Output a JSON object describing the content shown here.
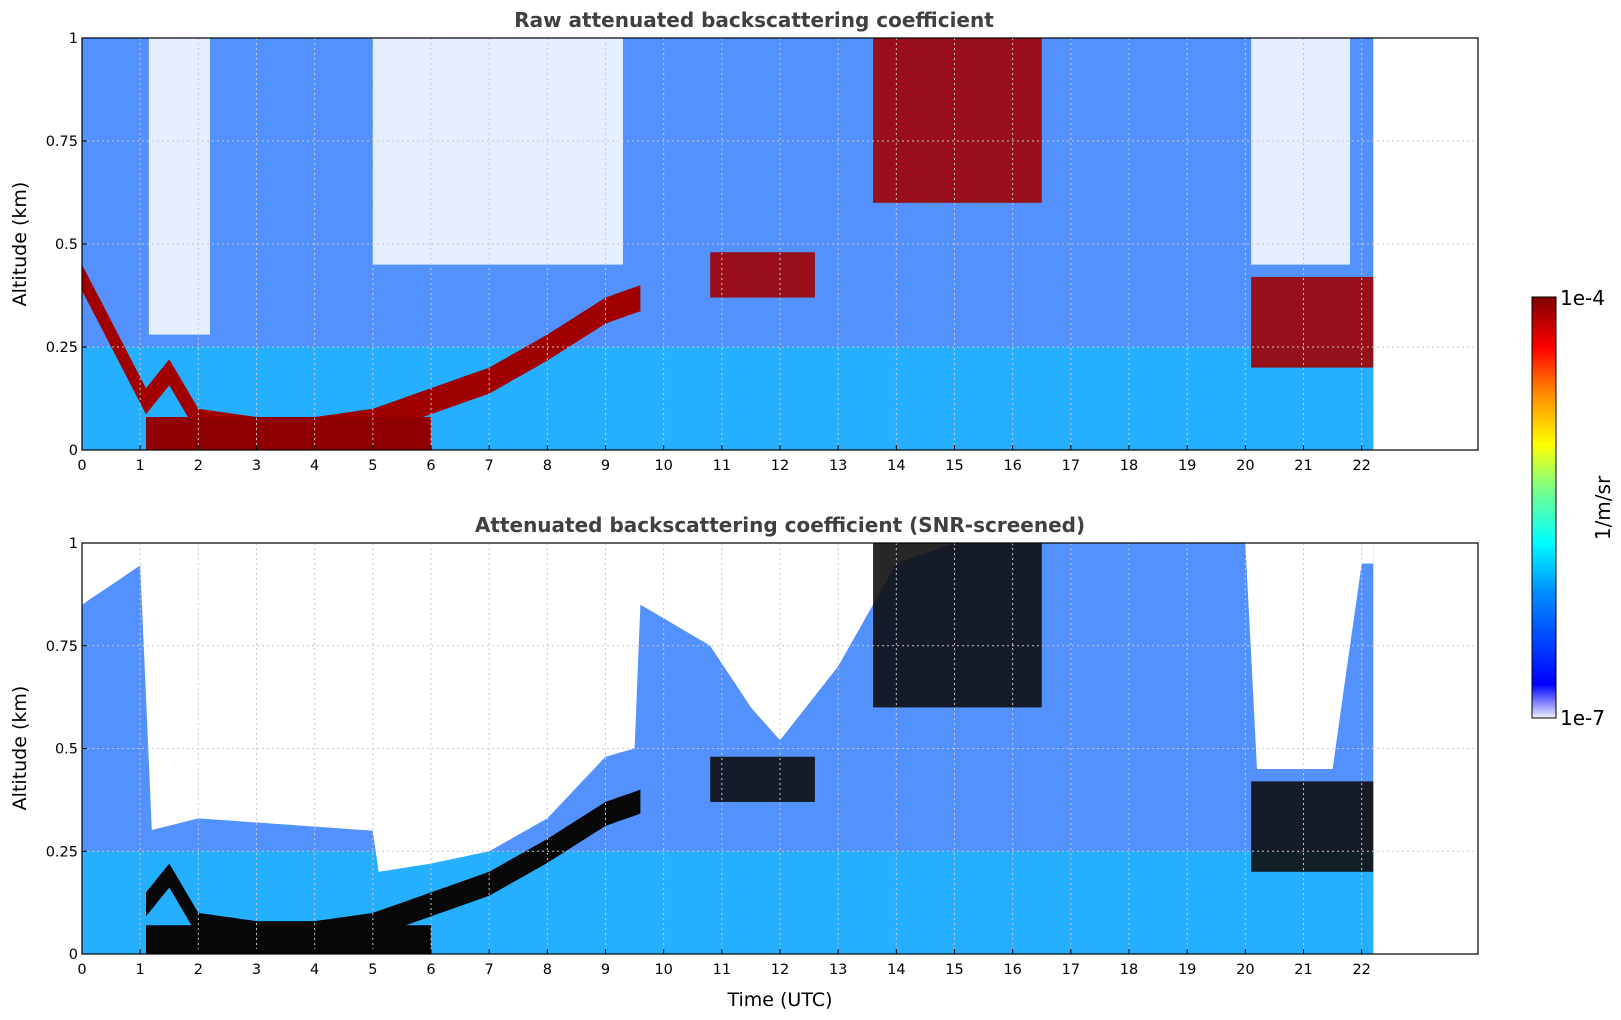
{
  "chart_data": [
    {
      "type": "heatmap",
      "title": "Raw attenuated backscattering coefficient",
      "xlabel": "",
      "ylabel": "Altitude (km)",
      "xlim": [
        0,
        24
      ],
      "ylim": [
        0,
        1
      ],
      "x_ticks": [
        "0",
        "1",
        "2",
        "3",
        "4",
        "5",
        "6",
        "7",
        "8",
        "9",
        "10",
        "11",
        "12",
        "13",
        "14",
        "15",
        "16",
        "17",
        "18",
        "19",
        "20",
        "21",
        "22"
      ],
      "y_ticks": [
        "0",
        "0.25",
        "0.5",
        "0.75",
        "1"
      ],
      "y_tick_values": [
        0,
        0.25,
        0.5,
        0.75,
        1
      ],
      "grid": true,
      "data_end_time": 22.2,
      "boundary_layer_top_km": [
        [
          0,
          0.45
        ],
        [
          1.1,
          0.15
        ],
        [
          1.5,
          0.22
        ],
        [
          2,
          0.1
        ],
        [
          3,
          0.08
        ],
        [
          4,
          0.08
        ],
        [
          5,
          0.1
        ],
        [
          6,
          0.15
        ],
        [
          7,
          0.2
        ],
        [
          8,
          0.28
        ],
        [
          9,
          0.37
        ],
        [
          9.6,
          0.4
        ]
      ],
      "cloud_features_km": [
        {
          "t_start": 10.8,
          "t_end": 12.6,
          "base": 0.37,
          "top": 0.48
        },
        {
          "t_start": 13.6,
          "t_end": 16.5,
          "base": 0.6,
          "top": 1.0
        },
        {
          "t_start": 20.1,
          "t_end": 22.2,
          "base": 0.2,
          "top": 0.42
        }
      ]
    },
    {
      "type": "heatmap",
      "title": "Attenuated backscattering coefficient (SNR-screened)",
      "xlabel": "Time (UTC)",
      "ylabel": "Altitude (km)",
      "xlim": [
        0,
        24
      ],
      "ylim": [
        0,
        1
      ],
      "x_ticks": [
        "0",
        "1",
        "2",
        "3",
        "4",
        "5",
        "6",
        "7",
        "8",
        "9",
        "10",
        "11",
        "12",
        "13",
        "14",
        "15",
        "16",
        "17",
        "18",
        "19",
        "20",
        "21",
        "22"
      ],
      "y_ticks": [
        "0",
        "0.25",
        "0.5",
        "0.75",
        "1"
      ],
      "y_tick_values": [
        0,
        0.25,
        0.5,
        0.75,
        1
      ],
      "grid": true,
      "data_end_time": 22.2,
      "signal_top_km": [
        [
          0,
          0.85
        ],
        [
          1.05,
          0.95
        ],
        [
          1.15,
          0.3
        ],
        [
          2,
          0.33
        ],
        [
          5,
          0.3
        ],
        [
          5.1,
          0.2
        ],
        [
          6,
          0.22
        ],
        [
          7,
          0.25
        ],
        [
          8,
          0.33
        ],
        [
          9,
          0.48
        ],
        [
          9.5,
          0.5
        ],
        [
          9.6,
          0.85
        ],
        [
          10.8,
          0.75
        ],
        [
          11.5,
          0.6
        ],
        [
          12,
          0.52
        ],
        [
          13,
          0.7
        ],
        [
          14,
          0.95
        ],
        [
          15,
          1.0
        ],
        [
          20,
          1.0
        ],
        [
          20.2,
          0.45
        ],
        [
          21.5,
          0.45
        ],
        [
          22,
          0.95
        ],
        [
          22.2,
          0.95
        ]
      ]
    }
  ],
  "colorbar": {
    "max_label": "1e-4",
    "min_label": "1e-7",
    "unit_label": "1/m/sr",
    "colormap": "jet",
    "scale": "log",
    "stops": [
      "#f0f0ff",
      "#0000ff",
      "#0090ff",
      "#00ffff",
      "#80ff80",
      "#ffff00",
      "#ff8000",
      "#ff0000",
      "#800000"
    ]
  }
}
